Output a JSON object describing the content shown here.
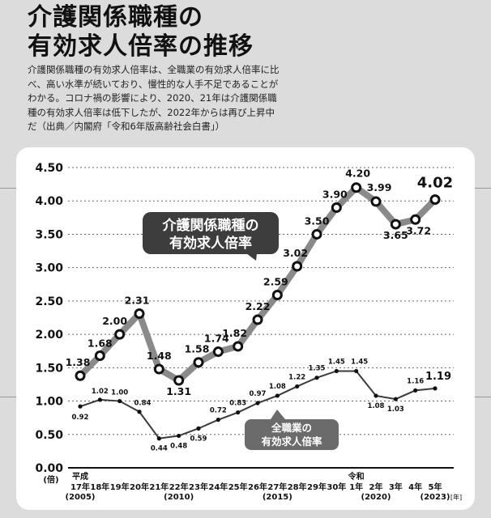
{
  "header": {
    "title_line1": "介護関係職種の",
    "title_line2": "有効求人倍率の推移",
    "description_lines": [
      "介護関係職種の有効求人倍率は、全職業の有効求人倍率に比",
      "べ、高い水準が続いており、慢性的な人手不足であることが",
      "わかる。コロナ禍の影響により、2020、21年は介護関係職",
      "種の有効求人倍率は低下したが、2022年からは再び上昇中",
      "だ（出典／内閣府「令和6年版高齢社会白書」）"
    ]
  },
  "chart_data": {
    "type": "line",
    "ylim": [
      0,
      4.5
    ],
    "y_ticks": [
      "0.00",
      "0.50",
      "1.00",
      "1.50",
      "2.00",
      "2.50",
      "3.00",
      "3.50",
      "4.00",
      "4.50"
    ],
    "y_unit": "(倍)",
    "x_unit": "[年]",
    "era_labels": {
      "heisei": "平成",
      "reiwa": "令和"
    },
    "categories": [
      "17年",
      "18年",
      "19年",
      "20年",
      "21年",
      "22年",
      "23年",
      "24年",
      "25年",
      "26年",
      "27年",
      "28年",
      "29年",
      "30年",
      "1年",
      "2年",
      "3年",
      "4年",
      "5年"
    ],
    "sublabels": [
      "(2005)",
      "",
      "",
      "",
      "",
      "(2010)",
      "",
      "",
      "",
      "",
      "(2015)",
      "",
      "",
      "",
      "",
      "(2020)",
      "",
      "",
      "(2023)"
    ],
    "grid": true,
    "series": [
      {
        "name": "介護関係職種の有効求人倍率",
        "name_lines": [
          "介護関係職種の",
          "有効求人倍率"
        ],
        "color": "#8a8a8a",
        "values": [
          1.38,
          1.68,
          2.0,
          2.31,
          1.48,
          1.31,
          1.58,
          1.74,
          1.82,
          2.22,
          2.59,
          3.02,
          3.5,
          3.9,
          4.2,
          3.99,
          3.65,
          3.72,
          4.02
        ],
        "labels": [
          "1.38",
          "1.68",
          "2.00",
          "2.31",
          "1.48",
          "1.31",
          "1.58",
          "1.74",
          "1.82",
          "2.22",
          "2.59",
          "3.02",
          "3.50",
          "3.90",
          "4.20",
          "3.99",
          "3.65",
          "3.72",
          "4.02"
        ]
      },
      {
        "name": "全職業の有効求人倍率",
        "name_lines": [
          "全職業の",
          "有効求人倍率"
        ],
        "color": "#3a3a3a",
        "values": [
          0.92,
          1.02,
          1.0,
          0.84,
          0.44,
          0.48,
          0.59,
          0.72,
          0.83,
          0.97,
          1.08,
          1.22,
          1.35,
          1.45,
          1.45,
          1.08,
          1.03,
          1.16,
          1.19
        ],
        "labels": [
          "0.92",
          "1.02",
          "1.00",
          "0.84",
          "0.44",
          "0.48",
          "0.59",
          "0.72",
          "0.83",
          "0.97",
          "1.08",
          "1.22",
          "1.35",
          "1.45",
          "1.45",
          "1.08",
          "1.03",
          "1.16",
          "1.19"
        ]
      }
    ]
  }
}
